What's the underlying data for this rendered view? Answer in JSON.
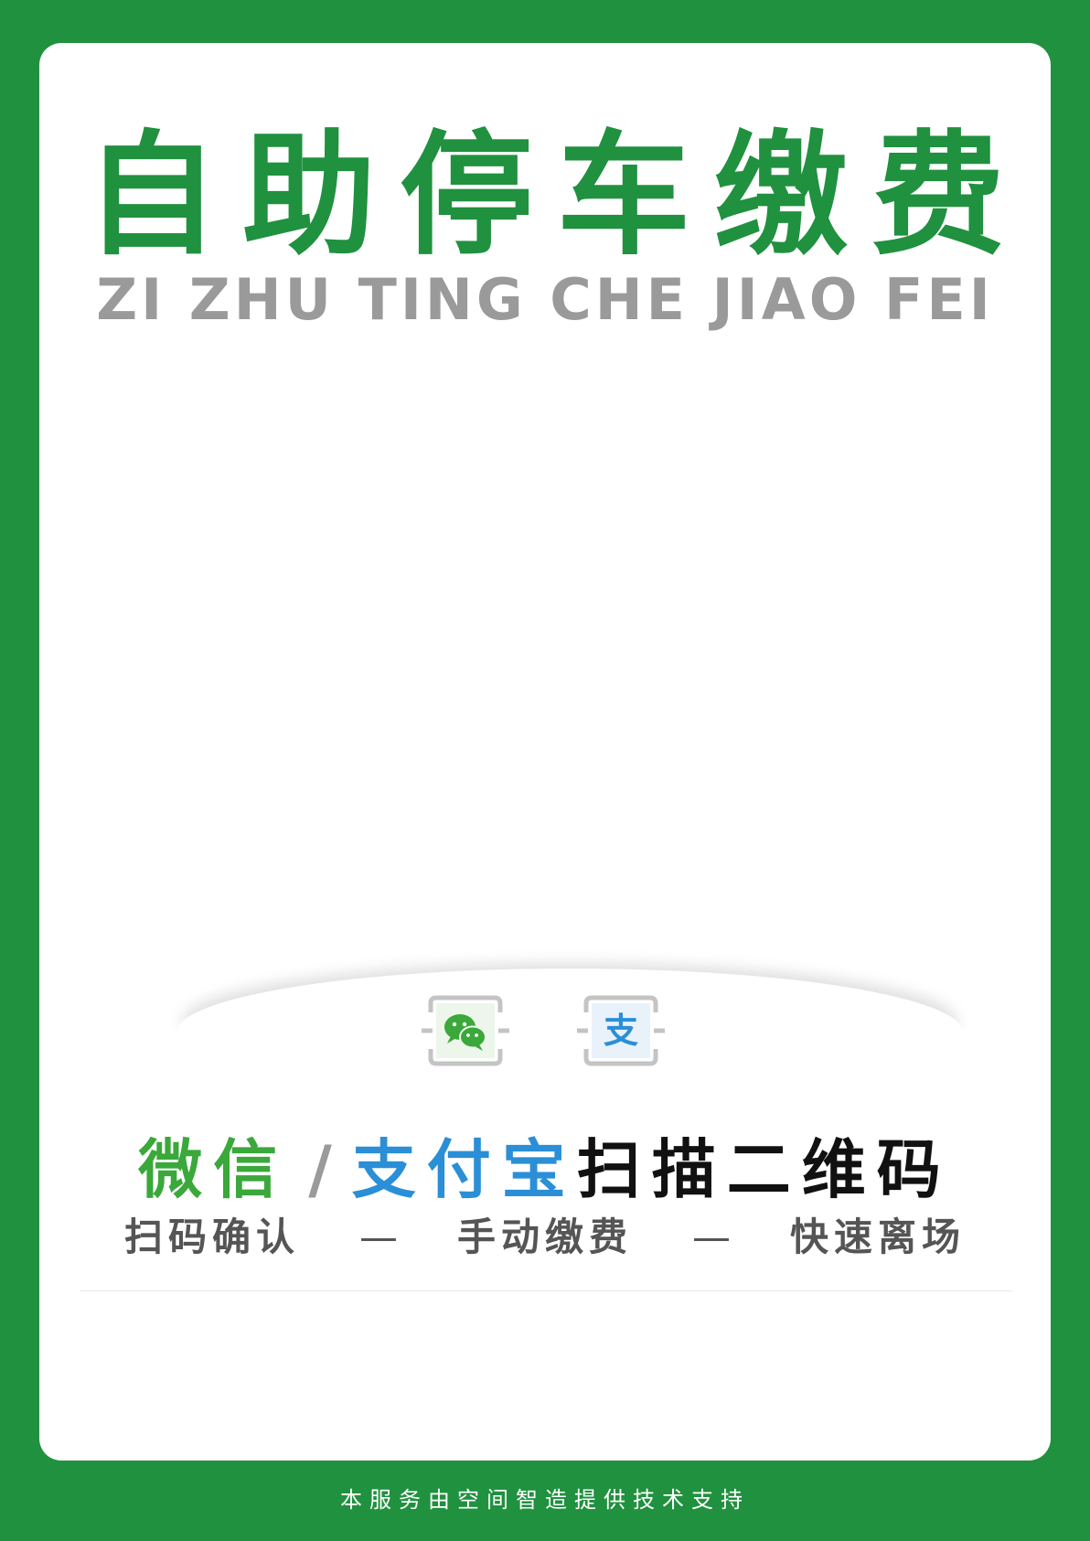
{
  "poster": {
    "title": "自助停车缴费",
    "pinyin": "ZI ZHU TING CHE JIAO FEI"
  },
  "payment": {
    "icons": [
      "wechat-icon",
      "alipay-icon"
    ],
    "alipay_glyph": "支",
    "headline_wechat": "微信",
    "headline_slash": "/",
    "headline_alipay": "支付宝",
    "headline_scan": "扫描二维码",
    "steps": [
      "扫码确认",
      "手动缴费",
      "快速离场"
    ],
    "separator": "—"
  },
  "footer": {
    "text": "本服务由空间智造提供技术支持"
  },
  "colors": {
    "brand_green": "#20913f",
    "wechat_green": "#3aa83a",
    "alipay_blue": "#2a8fd6",
    "pinyin_gray": "#9a9a9a"
  }
}
